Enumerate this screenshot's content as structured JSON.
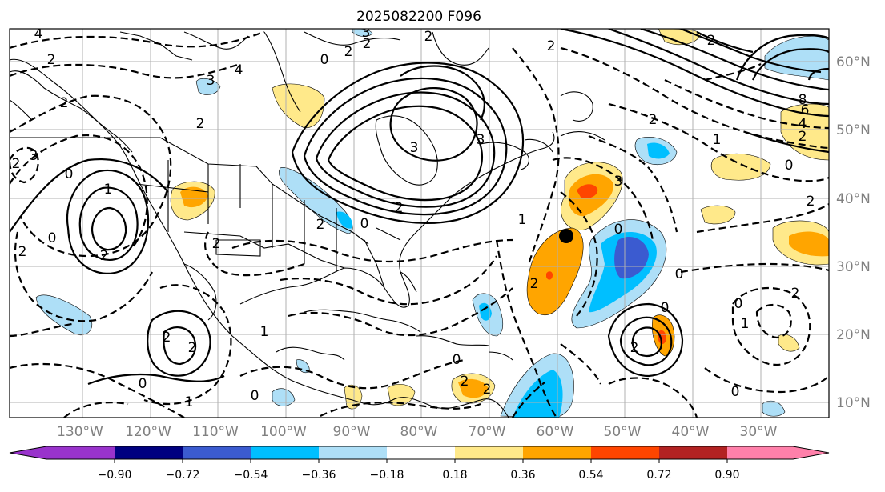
{
  "title": "2025082200 F096",
  "lon_labels": [
    "130°W",
    "120°W",
    "110°W",
    "100°W",
    "90°W",
    "80°W",
    "70°W",
    "60°W",
    "50°W",
    "40°W",
    "30°W"
  ],
  "lat_labels": [
    "60°N",
    "50°N",
    "40°N",
    "30°N",
    "20°N",
    "10°N"
  ],
  "colorbar": {
    "ticks": [
      "−0.90",
      "−0.72",
      "−0.54",
      "−0.36",
      "−0.18",
      "0.18",
      "0.36",
      "0.54",
      "0.72",
      "0.90"
    ],
    "colors": [
      "#9933cc",
      "#000080",
      "#3b5bd0",
      "#00bfff",
      "#aedff7",
      "#ffffff",
      "#ffe98a",
      "#ffa500",
      "#ff4500",
      "#b22222",
      "#ff80aa"
    ]
  },
  "contour_labels": [
    "4",
    "2",
    "2",
    "3",
    "4",
    "0",
    "2",
    "2",
    "2",
    "3",
    "2",
    "2",
    "3",
    "2",
    "0",
    "1",
    "2",
    "0",
    "3",
    "2",
    "3",
    "2",
    "0",
    "1",
    "3",
    "2",
    "8",
    "6",
    "4",
    "2",
    "0",
    "2",
    "1",
    "2",
    "0",
    "2",
    "2",
    "2",
    "2",
    "1",
    "2",
    "0",
    "2",
    "1",
    "0",
    "0",
    "2",
    "0",
    "2",
    "1",
    "0",
    "0",
    "0",
    "2"
  ],
  "marker": "storm-center",
  "palette": {
    "land_line": "#000000",
    "grid": "#b0b0b0",
    "axis_text": "#808080"
  }
}
